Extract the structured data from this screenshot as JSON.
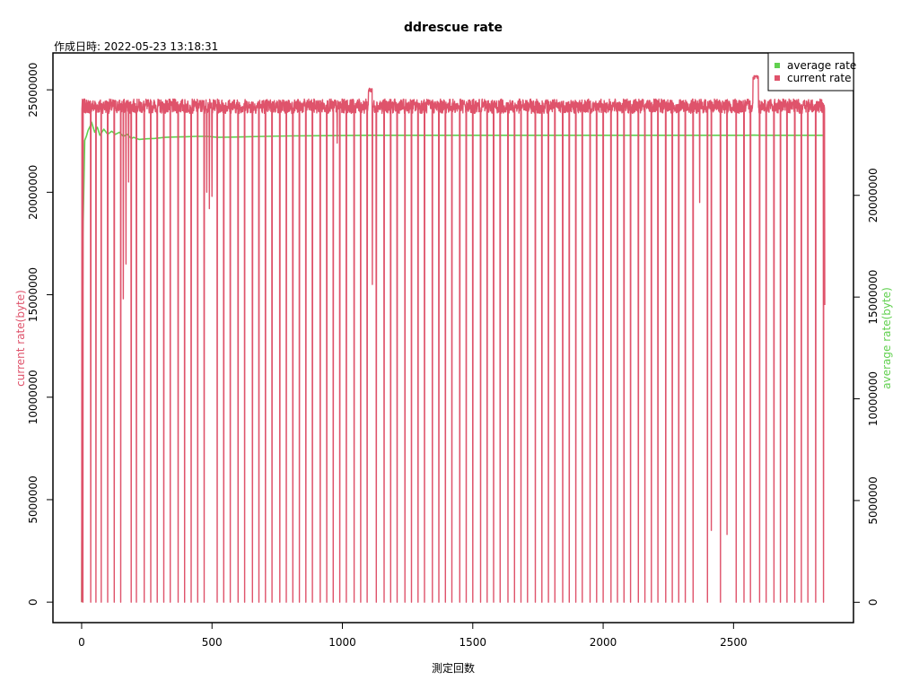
{
  "chart_data": {
    "type": "line",
    "title": "ddrescue rate",
    "subtitle": "作成日時: 2022-05-23 13:18:31",
    "xlabel": "測定回数",
    "ylabel_left": "current rate(byte)",
    "ylabel_right": "average rate(byte)",
    "xlim": [
      -110,
      2960
    ],
    "ylim_left": [
      -1000000,
      26800000
    ],
    "ylim_right": [
      -1000000,
      27000000
    ],
    "x_ticks": [
      0,
      500,
      1000,
      1500,
      2000,
      2500
    ],
    "x_tick_labels": [
      "0",
      "500",
      "1000",
      "1500",
      "2000",
      "2500"
    ],
    "y_left_ticks": [
      0,
      5000000,
      10000000,
      15000000,
      20000000,
      25000000
    ],
    "y_left_tick_labels": [
      "0",
      "5000000",
      "10000000",
      "15000000",
      "20000000",
      "25000000"
    ],
    "y_right_ticks": [
      0,
      5000000,
      10000000,
      15000000,
      20000000
    ],
    "y_right_tick_labels": [
      "0",
      "5000000",
      "10000000",
      "15000000",
      "20000000"
    ],
    "grid": false,
    "legend_position": "top-right",
    "colors": {
      "current": "#df536b",
      "average": "#61d04f",
      "axis": "#000000"
    },
    "series": [
      {
        "name": "average rate",
        "axis": "right",
        "x": [
          0,
          5,
          12,
          18,
          25,
          33,
          38,
          50,
          60,
          70,
          85,
          100,
          115,
          130,
          145,
          160,
          175,
          190,
          200,
          220,
          250,
          280,
          320,
          360,
          400,
          440,
          480,
          500,
          520,
          600,
          700,
          800,
          900,
          1000,
          1100,
          1200,
          1500,
          2000,
          2500,
          2550,
          2580,
          2600,
          2850
        ],
        "y": [
          0,
          18000000,
          22700000,
          22900000,
          23200000,
          23400000,
          23600000,
          23100000,
          23350000,
          22950000,
          23250000,
          23000000,
          23150000,
          23000000,
          23100000,
          22900000,
          23000000,
          22800000,
          22850000,
          22750000,
          22780000,
          22800000,
          22850000,
          22870000,
          22880000,
          22900000,
          22900000,
          22880000,
          22850000,
          22870000,
          22900000,
          22920000,
          22930000,
          22940000,
          22950000,
          22950000,
          22950000,
          22950000,
          22950000,
          22950000,
          22960000,
          22950000,
          22950000
        ]
      },
      {
        "name": "current rate",
        "axis": "left",
        "x_range": [
          0,
          2850
        ],
        "baseline": 24200000,
        "noise_amplitude": 350000,
        "zero_dips_x": [
          5,
          35,
          55,
          75,
          100,
          125,
          150,
          190,
          210,
          240,
          265,
          290,
          315,
          340,
          370,
          395,
          420,
          445,
          470,
          520,
          545,
          570,
          600,
          625,
          655,
          680,
          705,
          730,
          760,
          785,
          810,
          835,
          860,
          885,
          915,
          940,
          965,
          990,
          1015,
          1045,
          1070,
          1095,
          1130,
          1160,
          1185,
          1210,
          1240,
          1265,
          1290,
          1315,
          1345,
          1370,
          1395,
          1420,
          1450,
          1475,
          1500,
          1530,
          1555,
          1580,
          1605,
          1635,
          1660,
          1685,
          1710,
          1740,
          1765,
          1790,
          1815,
          1845,
          1870,
          1895,
          1920,
          1950,
          1975,
          2000,
          2030,
          2055,
          2080,
          2105,
          2135,
          2160,
          2185,
          2210,
          2240,
          2265,
          2290,
          2315,
          2345,
          2400,
          2450,
          2510,
          2540,
          2565,
          2600,
          2625,
          2655,
          2680,
          2705,
          2735,
          2760,
          2785,
          2815,
          2845
        ],
        "partial_dips": [
          {
            "x": 160,
            "y": 14800000
          },
          {
            "x": 170,
            "y": 16500000
          },
          {
            "x": 180,
            "y": 20500000
          },
          {
            "x": 480,
            "y": 20000000
          },
          {
            "x": 490,
            "y": 19200000
          },
          {
            "x": 500,
            "y": 19800000
          },
          {
            "x": 980,
            "y": 22400000
          },
          {
            "x": 1115,
            "y": 15500000
          },
          {
            "x": 2370,
            "y": 19500000
          },
          {
            "x": 2415,
            "y": 3500000
          },
          {
            "x": 2475,
            "y": 3300000
          },
          {
            "x": 2850,
            "y": 14500000
          }
        ],
        "peaks": [
          {
            "x_from": 1100,
            "x_to": 1115,
            "y": 25100000
          },
          {
            "x_from": 2575,
            "x_to": 2595,
            "y": 25700000
          }
        ]
      }
    ]
  }
}
